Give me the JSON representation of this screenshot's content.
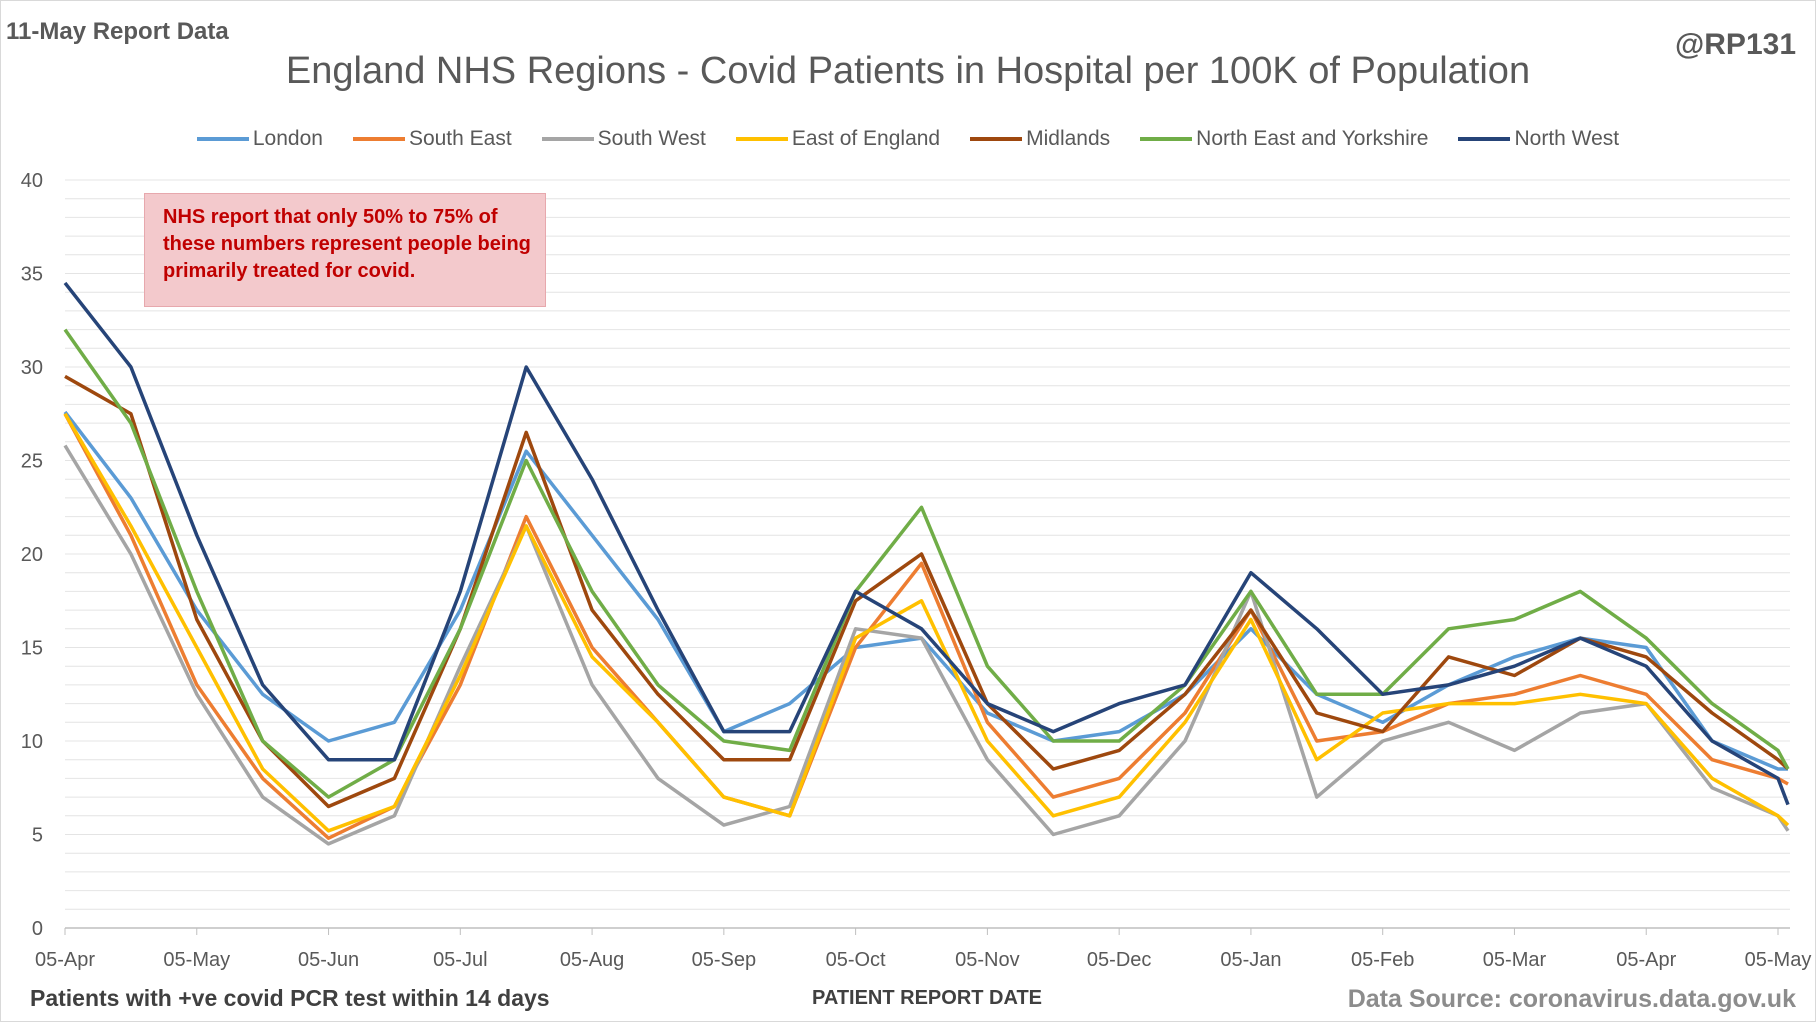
{
  "header": {
    "report_date": "11-May Report Data",
    "handle": "@RP131"
  },
  "footer": {
    "note": "Patients with +ve covid PCR test within 14 days",
    "source": "Data Source: coronavirus.data.gov.uk"
  },
  "annotation": {
    "text": "NHS report that only 50% to 75% of these numbers represent people being primarily treated for covid."
  },
  "chart_data": {
    "type": "line",
    "title": "England NHS Regions - Covid Patients in Hospital per 100K of Population",
    "xlabel": "PATIENT REPORT DATE",
    "ylabel": "",
    "ylim": [
      0,
      40
    ],
    "yticks": [
      0,
      5,
      10,
      15,
      20,
      25,
      30,
      35,
      40
    ],
    "grid": true,
    "legend_position": "top",
    "x_tick_labels": [
      "05-Apr",
      "05-May",
      "05-Jun",
      "05-Jul",
      "05-Aug",
      "05-Sep",
      "05-Oct",
      "05-Nov",
      "05-Dec",
      "05-Jan",
      "05-Feb",
      "05-Mar",
      "05-Apr",
      "05-May"
    ],
    "x": [
      "05-Apr",
      "20-Apr",
      "05-May",
      "20-May",
      "05-Jun",
      "20-Jun",
      "05-Jul",
      "20-Jul",
      "05-Aug",
      "20-Aug",
      "05-Sep",
      "20-Sep",
      "05-Oct",
      "20-Oct",
      "05-Nov",
      "20-Nov",
      "05-Dec",
      "20-Dec",
      "05-Jan",
      "20-Jan",
      "05-Feb",
      "20-Feb",
      "05-Mar",
      "20-Mar",
      "05-Apr",
      "20-Apr",
      "05-May",
      "10-May"
    ],
    "series": [
      {
        "name": "London",
        "color": "#5b9bd5",
        "values": [
          27.6,
          23.0,
          17.0,
          12.5,
          10.0,
          11.0,
          17.0,
          25.5,
          21.0,
          16.5,
          10.5,
          12.0,
          15.0,
          15.5,
          11.5,
          10.0,
          10.5,
          12.5,
          16.0,
          12.5,
          11.0,
          13.0,
          14.5,
          15.5,
          15.0,
          10.0,
          8.5,
          8.5
        ]
      },
      {
        "name": "South East",
        "color": "#ed7d31",
        "values": [
          27.5,
          21.0,
          13.0,
          8.0,
          4.8,
          6.5,
          13.0,
          22.0,
          15.0,
          11.0,
          7.0,
          6.0,
          15.0,
          19.5,
          11.0,
          7.0,
          8.0,
          11.5,
          17.0,
          10.0,
          10.5,
          12.0,
          12.5,
          13.5,
          12.5,
          9.0,
          8.0,
          7.7
        ]
      },
      {
        "name": "South West",
        "color": "#a5a5a5",
        "values": [
          25.8,
          20.0,
          12.5,
          7.0,
          4.5,
          6.0,
          14.0,
          21.5,
          13.0,
          8.0,
          5.5,
          6.5,
          16.0,
          15.5,
          9.0,
          5.0,
          6.0,
          10.0,
          18.0,
          7.0,
          10.0,
          11.0,
          9.5,
          11.5,
          12.0,
          7.5,
          6.0,
          5.2
        ]
      },
      {
        "name": "East of England",
        "color": "#ffc000",
        "values": [
          27.5,
          21.5,
          15.0,
          8.5,
          5.2,
          6.5,
          13.5,
          21.5,
          14.5,
          11.0,
          7.0,
          6.0,
          15.5,
          17.5,
          10.0,
          6.0,
          7.0,
          11.0,
          16.5,
          9.0,
          11.5,
          12.0,
          12.0,
          12.5,
          12.0,
          8.0,
          6.0,
          5.5
        ]
      },
      {
        "name": "Midlands",
        "color": "#9e480e",
        "values": [
          29.5,
          27.5,
          16.5,
          10.0,
          6.5,
          8.0,
          16.0,
          26.5,
          17.0,
          12.5,
          9.0,
          9.0,
          17.5,
          20.0,
          12.0,
          8.5,
          9.5,
          12.5,
          17.0,
          11.5,
          10.5,
          14.5,
          13.5,
          15.5,
          14.5,
          11.5,
          9.0,
          8.5
        ]
      },
      {
        "name": "North East and Yorkshire",
        "color": "#70ad47",
        "values": [
          32.0,
          27.0,
          18.0,
          10.0,
          7.0,
          9.0,
          16.0,
          25.0,
          18.0,
          13.0,
          10.0,
          9.5,
          18.0,
          22.5,
          14.0,
          10.0,
          10.0,
          13.0,
          18.0,
          12.5,
          12.5,
          16.0,
          16.5,
          18.0,
          15.5,
          12.0,
          9.5,
          8.5
        ]
      },
      {
        "name": "North West",
        "color": "#264478",
        "values": [
          34.5,
          30.0,
          21.0,
          13.0,
          9.0,
          9.0,
          18.0,
          30.0,
          24.0,
          17.0,
          10.5,
          10.5,
          18.0,
          16.0,
          12.0,
          10.5,
          12.0,
          13.0,
          19.0,
          16.0,
          12.5,
          13.0,
          14.0,
          15.5,
          14.0,
          10.0,
          8.0,
          6.6
        ]
      }
    ]
  }
}
